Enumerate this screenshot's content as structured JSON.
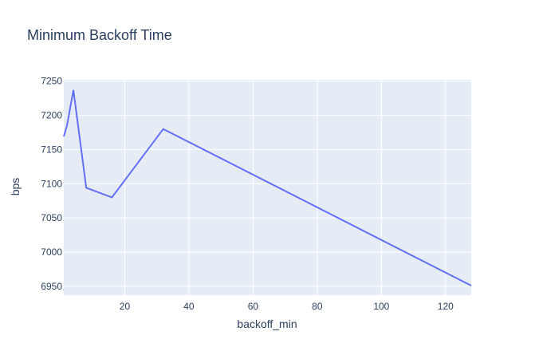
{
  "chart_data": {
    "type": "line",
    "title": "Minimum Backoff Time",
    "xlabel": "backoff_min",
    "ylabel": "bps",
    "x": [
      1,
      2,
      4,
      8,
      16,
      32,
      128
    ],
    "series": [
      {
        "name": "bps",
        "values": [
          7169,
          7185,
          7237,
          7094,
          7080,
          7180,
          6951
        ]
      }
    ],
    "xlim": [
      1,
      128
    ],
    "ylim": [
      6937,
      7252
    ],
    "xticks": [
      20,
      40,
      60,
      80,
      100,
      120
    ],
    "xtick_labels": [
      "20",
      "40",
      "60",
      "80",
      "100",
      "120"
    ],
    "yticks": [
      6950,
      7000,
      7050,
      7100,
      7150,
      7200,
      7250
    ],
    "ytick_labels": [
      "6950",
      "7000",
      "7050",
      "7100",
      "7150",
      "7200",
      "7250"
    ],
    "grid": true,
    "colors": {
      "line": "#636efa",
      "plot_bg": "#e5ecf6",
      "grid": "#ffffff",
      "text": "#2a3f5f"
    }
  }
}
